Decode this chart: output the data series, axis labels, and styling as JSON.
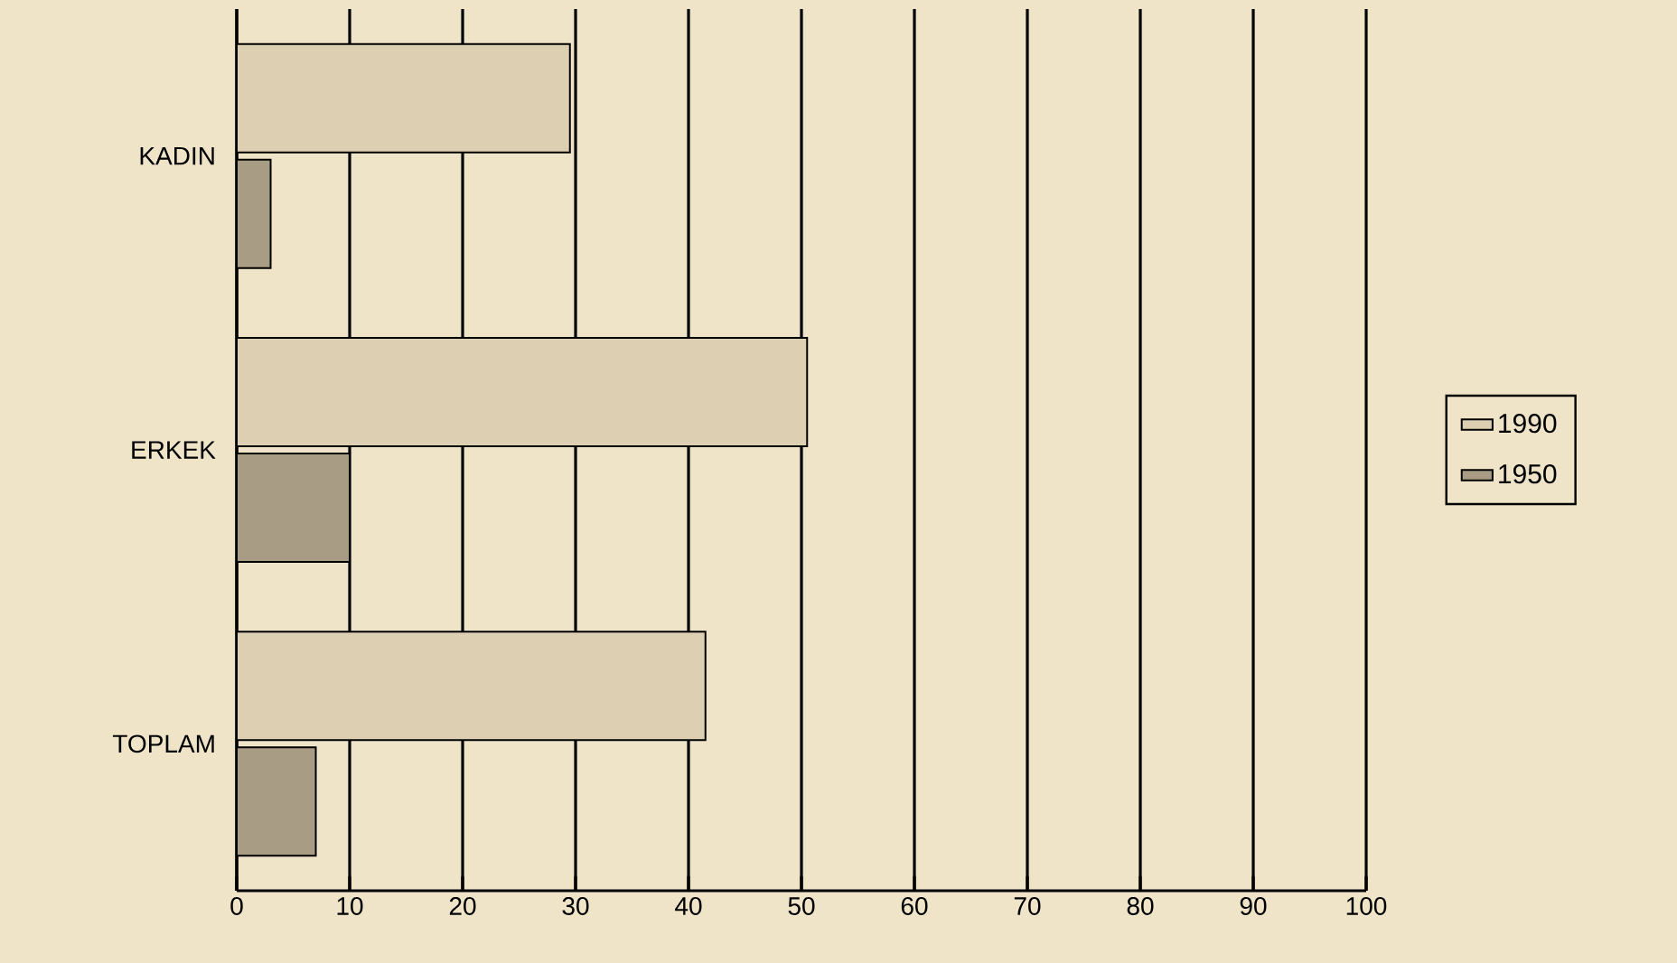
{
  "chart_data": {
    "type": "bar",
    "orientation": "horizontal",
    "categories": [
      "KADIN",
      "ERKEK",
      "TOPLAM"
    ],
    "series": [
      {
        "name": "1990",
        "color": "#dccfb2",
        "values": [
          29.5,
          50.5,
          41.5
        ]
      },
      {
        "name": "1950",
        "color": "#a89c84",
        "values": [
          3,
          10,
          7
        ]
      }
    ],
    "xlim": [
      0,
      100
    ],
    "xticks": [
      0,
      10,
      20,
      30,
      40,
      50,
      60,
      70,
      80,
      90,
      100
    ],
    "grid": "x",
    "legend": "right"
  }
}
